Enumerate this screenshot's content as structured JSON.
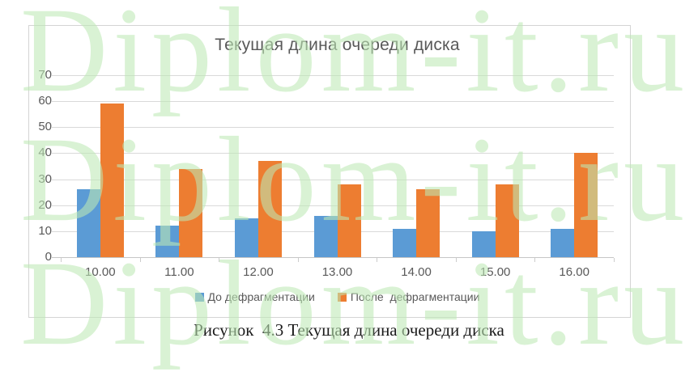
{
  "watermark": {
    "text": "Diplom-it.ru",
    "color_rgba": "rgba(189,233,181,0.58)"
  },
  "figure_caption": "Рисунок  4.3 Текущая длина очереди диска",
  "chart_data": {
    "type": "bar",
    "title": "Текущая длина очереди диска",
    "categories": [
      "10.00",
      "11.00",
      "12.00",
      "13.00",
      "14.00",
      "15.00",
      "16.00"
    ],
    "series": [
      {
        "name": "До дефрагментации",
        "color": "#5B9BD5",
        "values": [
          26,
          12,
          15,
          16,
          11,
          10,
          11
        ]
      },
      {
        "name": "После  дефрагментации",
        "color": "#ED7D31",
        "values": [
          59,
          34,
          37,
          28,
          26,
          28,
          40
        ]
      }
    ],
    "xlabel": "",
    "ylabel": "",
    "ylim": [
      0,
      70
    ],
    "yticks": [
      0,
      10,
      20,
      30,
      40,
      50,
      60,
      70
    ],
    "grid": true,
    "legend_position": "bottom",
    "text_color": "#595959",
    "grid_color": "#D9D9D9",
    "axis_line_color": "#C6C6C6",
    "frame_color": "#D4D4D4"
  }
}
